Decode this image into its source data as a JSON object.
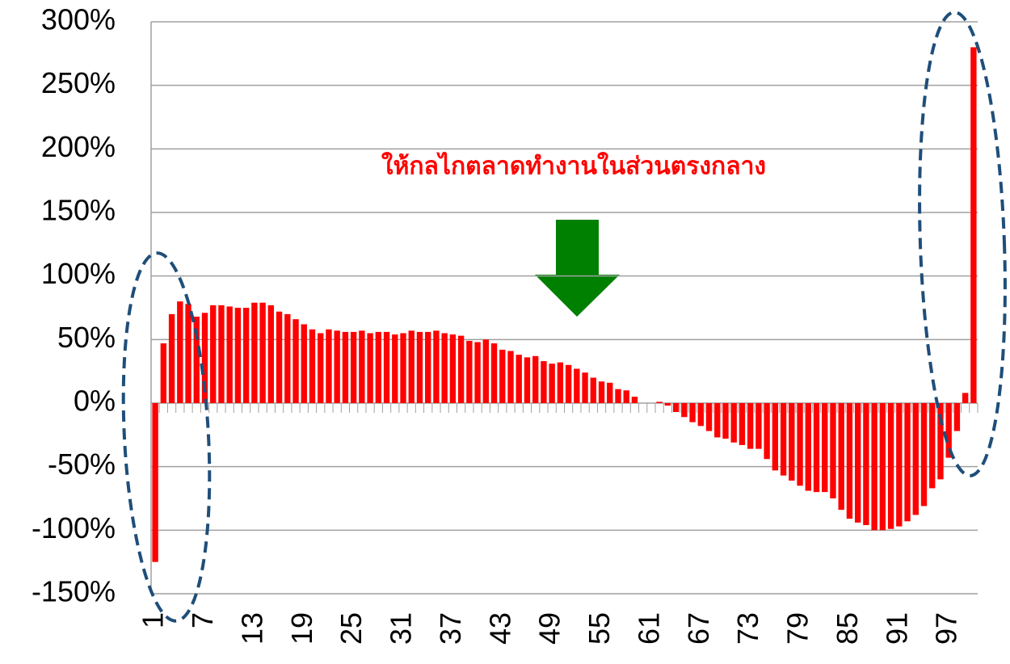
{
  "chart_data": {
    "type": "bar",
    "annotation": "ให้กลไกตลาดทำงานในส่วนตรงกลาง",
    "categories": [
      "1",
      null,
      null,
      null,
      null,
      null,
      "7",
      null,
      null,
      null,
      null,
      null,
      "13",
      null,
      null,
      null,
      null,
      null,
      "19",
      null,
      null,
      null,
      null,
      null,
      "25",
      null,
      null,
      null,
      null,
      null,
      "31",
      null,
      null,
      null,
      null,
      null,
      "37",
      null,
      null,
      null,
      null,
      null,
      "43",
      null,
      null,
      null,
      null,
      null,
      "49",
      null,
      null,
      null,
      null,
      null,
      "55",
      null,
      null,
      null,
      null,
      null,
      "61",
      null,
      null,
      null,
      null,
      null,
      "67",
      null,
      null,
      null,
      null,
      null,
      "73",
      null,
      null,
      null,
      null,
      null,
      "79",
      null,
      null,
      null,
      null,
      null,
      "85",
      null,
      null,
      null,
      null,
      null,
      "91",
      null,
      null,
      null,
      null,
      null,
      "97",
      null,
      null,
      null
    ],
    "values": [
      -125,
      47,
      70,
      80,
      78,
      68,
      71,
      77,
      77,
      76,
      75,
      75,
      79,
      79,
      77,
      72,
      70,
      66,
      62,
      58,
      55,
      58,
      57,
      56,
      56,
      57,
      55,
      56,
      56,
      54,
      55,
      57,
      56,
      56,
      57,
      55,
      54,
      53,
      49,
      48,
      50,
      47,
      42,
      41,
      38,
      36,
      37,
      33,
      31,
      32,
      30,
      27,
      24,
      20,
      17,
      16,
      11,
      10,
      5,
      0,
      0,
      1,
      -2,
      -7,
      -11,
      -15,
      -18,
      -22,
      -27,
      -28,
      -31,
      -33,
      -36,
      -36,
      -44,
      -53,
      -57,
      -61,
      -65,
      -69,
      -70,
      -70,
      -75,
      -84,
      -91,
      -94,
      -96,
      -100,
      -100,
      -99,
      -97,
      -93,
      -88,
      -81,
      -67,
      -60,
      -43,
      -22,
      8,
      280
    ],
    "color": "#ff0000",
    "ylim": [
      -150,
      300
    ],
    "yticks": [
      {
        "value": -150,
        "label": "-150%"
      },
      {
        "value": -100,
        "label": "-100%"
      },
      {
        "value": -50,
        "label": "-50%"
      },
      {
        "value": 0,
        "label": "0%"
      },
      {
        "value": 50,
        "label": "50%"
      },
      {
        "value": 100,
        "label": "100%"
      },
      {
        "value": 150,
        "label": "150%"
      },
      {
        "value": 200,
        "label": "200%"
      },
      {
        "value": 250,
        "label": "250%"
      },
      {
        "value": 300,
        "label": "300%"
      }
    ],
    "grid": true
  }
}
